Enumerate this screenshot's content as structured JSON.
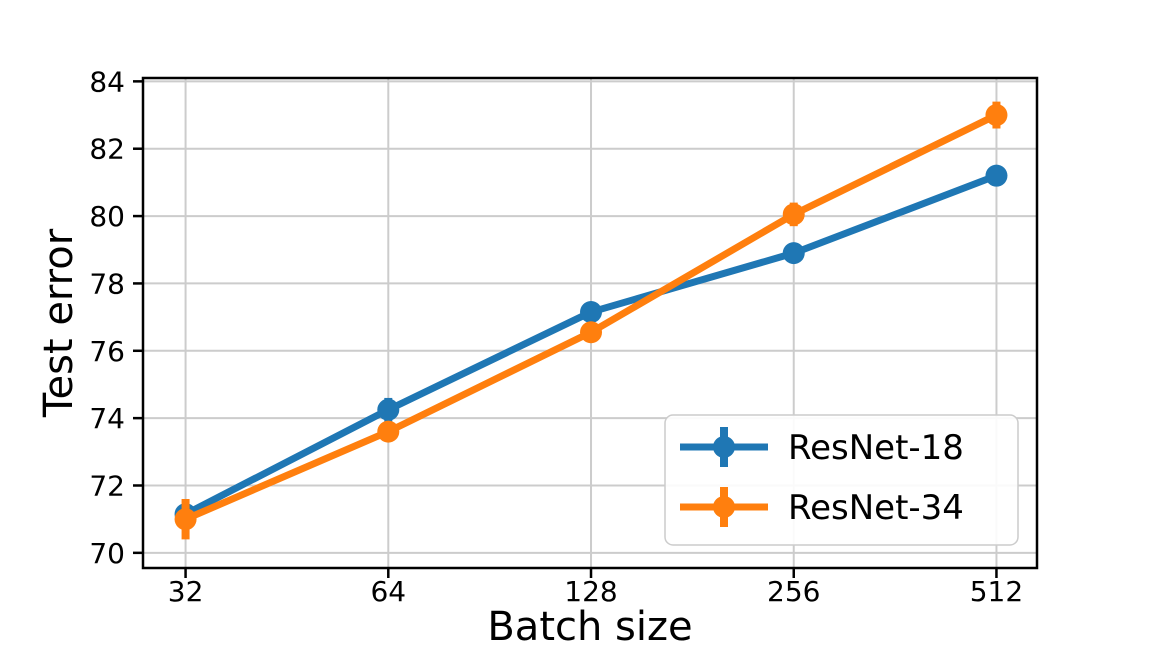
{
  "figure": {
    "background": "#ffffff",
    "plot_border_color": "#000000",
    "grid_color": "#cccccc",
    "text_color": "#000000"
  },
  "chart_data": {
    "type": "line",
    "title": "",
    "xlabel": "Batch size",
    "ylabel": "Test error",
    "x": [
      32,
      64,
      128,
      256,
      512
    ],
    "xticklabels": [
      "32",
      "64",
      "128",
      "256",
      "512"
    ],
    "x_scale": "log2",
    "xlim_log2": [
      4.79,
      9.2
    ],
    "yticks": [
      70,
      72,
      74,
      76,
      78,
      80,
      82,
      84
    ],
    "ylim": [
      69.55,
      84.1
    ],
    "grid": true,
    "legend_position": "lower right",
    "series": [
      {
        "name": "ResNet-18",
        "color": "#1f77b4",
        "marker": "circle",
        "values": [
          71.15,
          74.25,
          77.15,
          78.9,
          81.2
        ],
        "yerr": [
          0.25,
          0.35,
          0.3,
          0.2,
          0.2
        ]
      },
      {
        "name": "ResNet-34",
        "color": "#ff7f0e",
        "marker": "circle",
        "values": [
          71.0,
          73.6,
          76.55,
          80.05,
          83.0
        ],
        "yerr": [
          0.6,
          0.2,
          0.2,
          0.35,
          0.4
        ]
      }
    ]
  }
}
